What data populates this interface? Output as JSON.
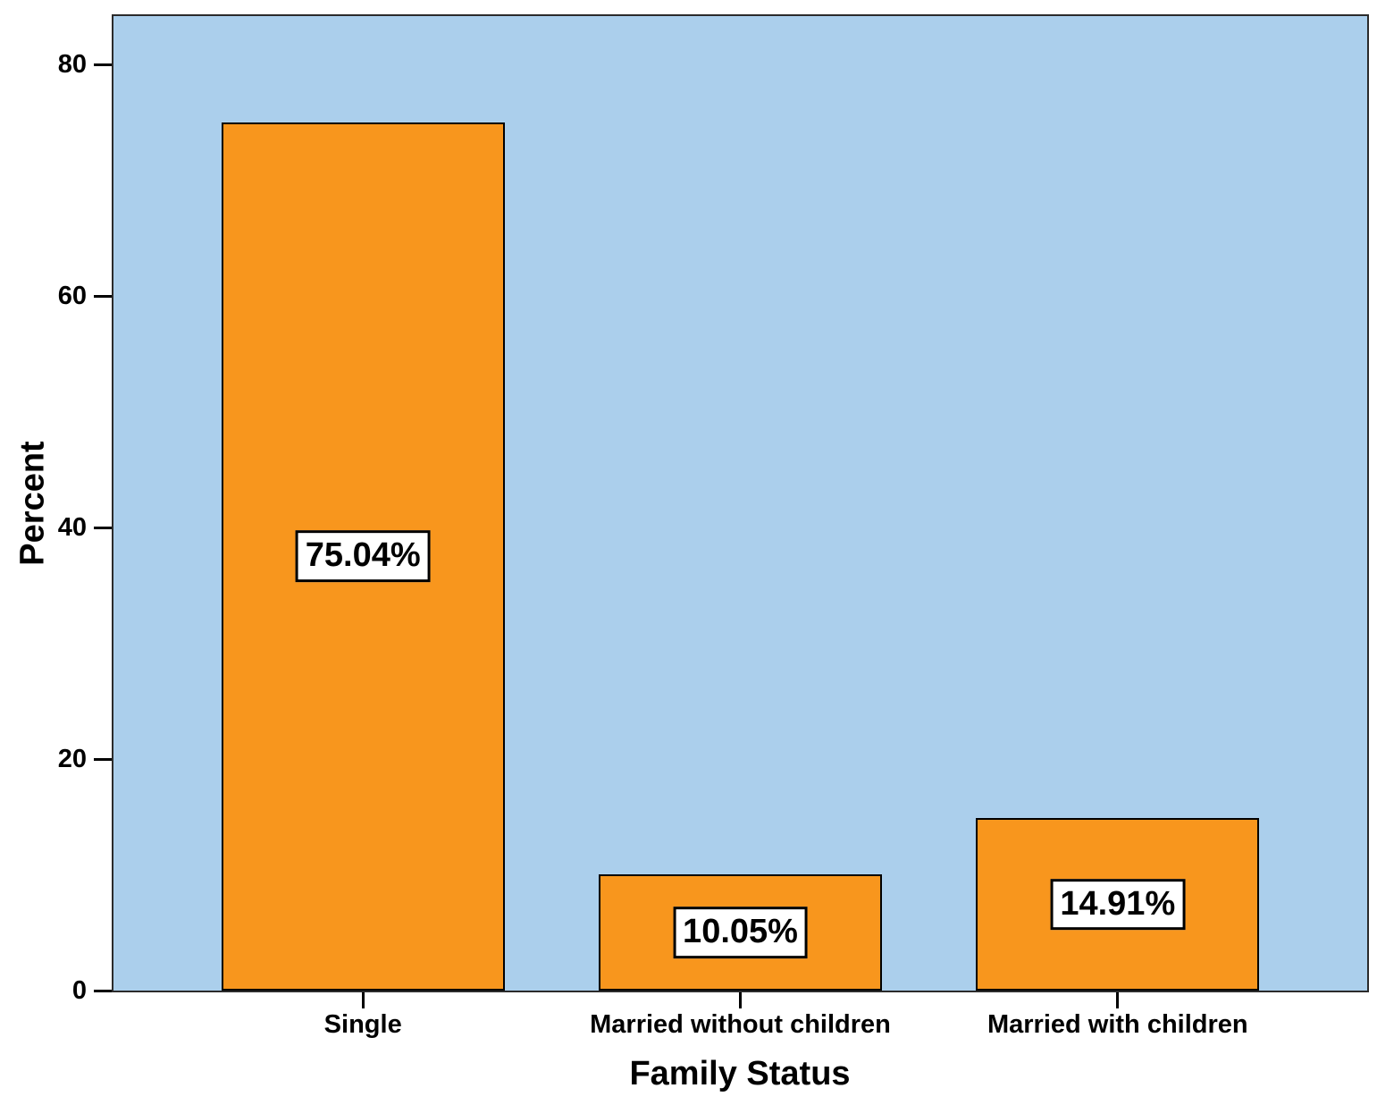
{
  "page": {
    "background": "#FFFFFF"
  },
  "chart_data": {
    "type": "bar",
    "title": "",
    "xlabel": "Family Status",
    "ylabel": "Percent",
    "categories": [
      "Single",
      "Married without children",
      "Married with children"
    ],
    "values": [
      75.04,
      10.05,
      14.91
    ],
    "value_labels": [
      "75.04%",
      "10.05%",
      "14.91%"
    ],
    "yticks": [
      0,
      20,
      40,
      60,
      80
    ],
    "ylim": [
      0,
      84.2
    ],
    "grid": false,
    "legend": "none",
    "colors": {
      "bar_fill": "#F8961D",
      "bar_border": "#000000",
      "plot_background": "#ABCFEC",
      "plot_border": "#2B2B2B",
      "label_box_background": "#FFFFFF",
      "label_box_border": "#000000",
      "text": "#000000",
      "page_background": "#FFFFFF"
    }
  }
}
